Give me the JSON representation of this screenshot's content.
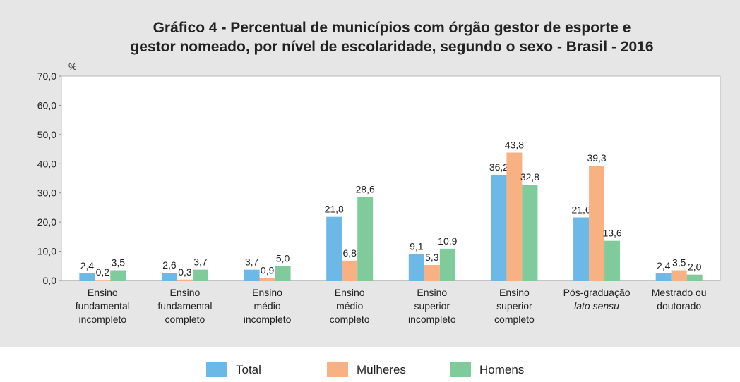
{
  "chart_data": {
    "type": "bar",
    "title": [
      "Gráfico 4 - Percentual de municípios com órgão gestor de esporte e",
      "gestor nomeado, por nível de escolaridade, segundo o sexo - Brasil - 2016"
    ],
    "y_label": "%",
    "categories": [
      [
        "Ensino",
        "fundamental",
        "incompleto"
      ],
      [
        "Ensino",
        "fundamental",
        "completo"
      ],
      [
        "Ensino",
        "médio",
        "incompleto"
      ],
      [
        "Ensino",
        "médio",
        "completo"
      ],
      [
        "Ensino",
        "superior",
        "incompleto"
      ],
      [
        "Ensino",
        "superior",
        "completo"
      ],
      [
        "Pós-graduação",
        "lato sensu"
      ],
      [
        "Mestrado ou",
        "doutorado"
      ]
    ],
    "series": [
      {
        "name": "Total",
        "color": "#6cb8e6",
        "values": [
          2.4,
          2.6,
          3.7,
          21.8,
          9.1,
          36.2,
          21.6,
          2.4
        ],
        "value_labels": [
          "2,4",
          "2,6",
          "3,7",
          "21,8",
          "9,1",
          "36,2",
          "21,6",
          "2,4"
        ]
      },
      {
        "name": "Mulheres",
        "color": "#f7b183",
        "values": [
          0.2,
          0.3,
          0.9,
          6.8,
          5.3,
          43.8,
          39.3,
          3.5
        ],
        "value_labels": [
          "0,2",
          "0,3",
          "0,9",
          "6,8",
          "5,3",
          "43,8",
          "39,3",
          "3,5"
        ]
      },
      {
        "name": "Homens",
        "color": "#7fcb9b",
        "values": [
          3.5,
          3.7,
          5.0,
          28.6,
          10.9,
          32.8,
          13.6,
          2.0
        ],
        "value_labels": [
          "3,5",
          "3,7",
          "5,0",
          "28,6",
          "10,9",
          "32,8",
          "13,6",
          "2,0"
        ]
      }
    ],
    "ylim": [
      0,
      70
    ],
    "yticks": [
      {
        "value": 0,
        "label": "0,0"
      },
      {
        "value": 10,
        "label": "10,0"
      },
      {
        "value": 20,
        "label": "20,0"
      },
      {
        "value": 30,
        "label": "30,0"
      },
      {
        "value": 40,
        "label": "40,0"
      },
      {
        "value": 50,
        "label": "50,0"
      },
      {
        "value": 60,
        "label": "60,0"
      },
      {
        "value": 70,
        "label": "70,0"
      }
    ],
    "grid": false
  }
}
